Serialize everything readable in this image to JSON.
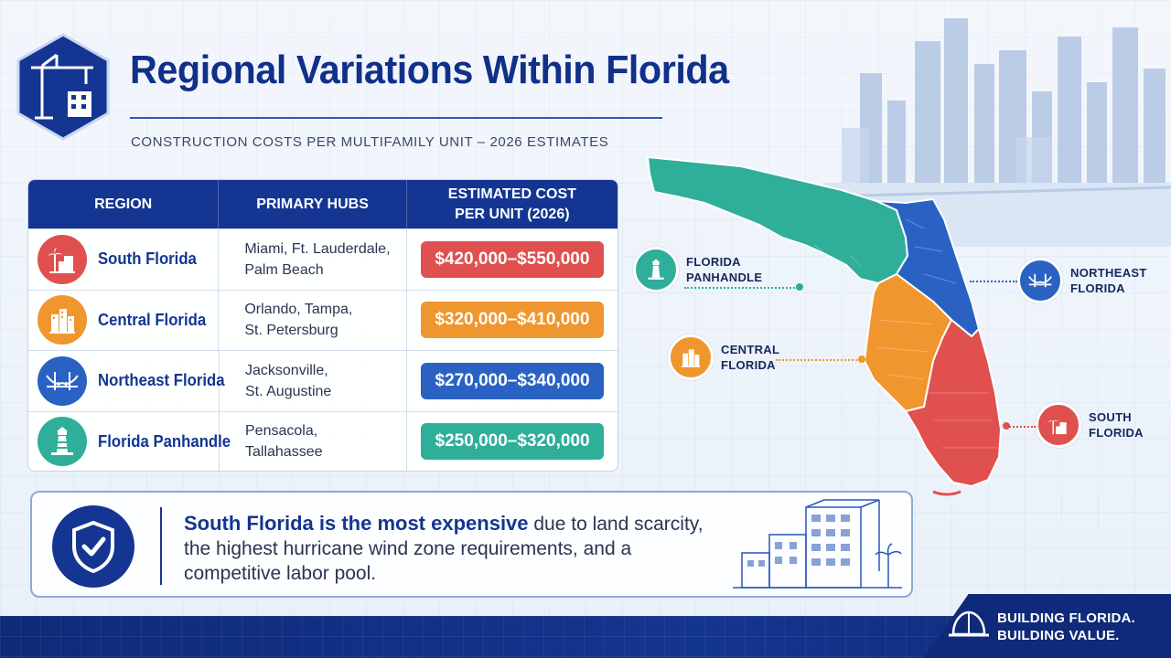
{
  "header": {
    "title": "Regional Variations Within Florida",
    "subtitle": "CONSTRUCTION COSTS PER MULTIFAMILY UNIT – 2026 ESTIMATES"
  },
  "table": {
    "headers": {
      "region": "REGION",
      "hubs": "PRIMARY HUBS",
      "cost_line1": "ESTIMATED COST",
      "cost_line2": "PER UNIT (2026)"
    },
    "rows": [
      {
        "region": "South Florida",
        "hubs_line1": "Miami, Ft. Lauderdale,",
        "hubs_line2": "Palm Beach",
        "cost": "$420,000–$550,000",
        "color": "#e0504e",
        "icon": "palm-building-icon"
      },
      {
        "region": "Central Florida",
        "hubs_line1": "Orlando, Tampa,",
        "hubs_line2": "St. Petersburg",
        "cost": "$320,000–$410,000",
        "color": "#f0962e",
        "icon": "buildings-icon"
      },
      {
        "region": "Northeast Florida",
        "hubs_line1": "Jacksonville,",
        "hubs_line2": "St. Augustine",
        "cost": "$270,000–$340,000",
        "color": "#2a62c4",
        "icon": "bridge-icon"
      },
      {
        "region": "Florida Panhandle",
        "hubs_line1": "Pensacola,",
        "hubs_line2": "Tallahassee",
        "cost": "$250,000–$320,000",
        "color": "#2fae9a",
        "icon": "lighthouse-icon"
      }
    ]
  },
  "map": {
    "callouts": {
      "panhandle_line1": "FLORIDA",
      "panhandle_line2": "PANHANDLE",
      "northeast_line1": "NORTHEAST",
      "northeast_line2": "FLORIDA",
      "central_line1": "CENTRAL",
      "central_line2": "FLORIDA",
      "south_line1": "SOUTH",
      "south_line2": "FLORIDA"
    }
  },
  "info": {
    "strong": "South Florida is the most expensive",
    "rest_line1": " due to land scarcity,",
    "line2": "the highest hurricane wind zone requirements, and a",
    "line3": "competitive labor pool."
  },
  "footer": {
    "line1": "BUILDING FLORIDA.",
    "line2": "BUILDING VALUE."
  },
  "colors": {
    "navy": "#143592",
    "south": "#e0504e",
    "central": "#f0962e",
    "northeast": "#2a62c4",
    "panhandle": "#2fae9a"
  }
}
